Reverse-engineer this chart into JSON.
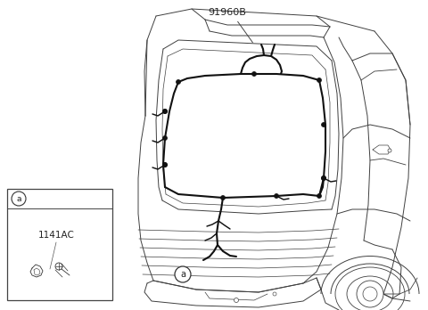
{
  "bg_color": "#ffffff",
  "line_color": "#404040",
  "wire_color": "#111111",
  "label_91960B": "91960B",
  "label_1141AC": "1141AC",
  "label_a": "a",
  "fig_width": 4.8,
  "fig_height": 3.48,
  "dpi": 100
}
